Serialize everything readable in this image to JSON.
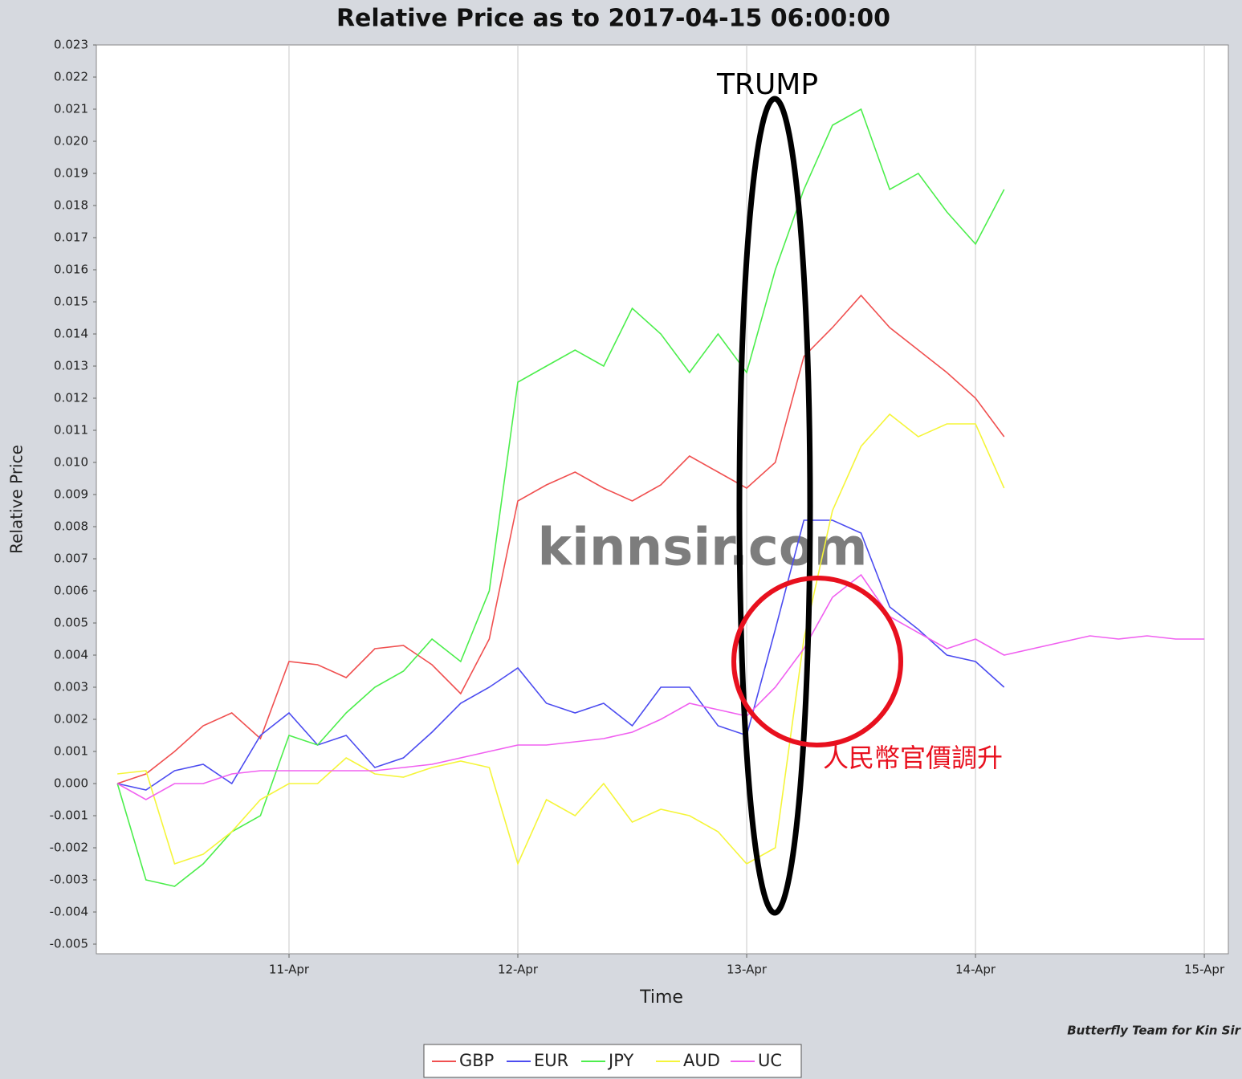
{
  "chart_data": {
    "type": "line",
    "title": "Relative Price as to 2017-04-15 06:00:00",
    "x_label": "Time",
    "y_label": "Relative Price",
    "annotations": [
      "TRUMP",
      "人民幣官價調升",
      "kinnsir.com",
      "Butterfly Team for Kin Sir"
    ],
    "xlim": [
      10.158,
      15.105
    ],
    "ylim": [
      -0.0053,
      0.023
    ],
    "xticks": [
      {
        "value": 11,
        "label": "11-Apr"
      },
      {
        "value": 12,
        "label": "12-Apr"
      },
      {
        "value": 13,
        "label": "13-Apr"
      },
      {
        "value": 14,
        "label": "14-Apr"
      },
      {
        "value": 15,
        "label": "15-Apr"
      }
    ],
    "yticks": [
      {
        "value": -0.005,
        "label": "-0.005"
      },
      {
        "value": -0.004,
        "label": "-0.004"
      },
      {
        "value": -0.003,
        "label": "-0.003"
      },
      {
        "value": -0.002,
        "label": "-0.002"
      },
      {
        "value": -0.001,
        "label": "-0.001"
      },
      {
        "value": 0,
        "label": "0.000"
      },
      {
        "value": 0.001,
        "label": "0.001"
      },
      {
        "value": 0.002,
        "label": "0.002"
      },
      {
        "value": 0.003,
        "label": "0.003"
      },
      {
        "value": 0.004,
        "label": "0.004"
      },
      {
        "value": 0.005,
        "label": "0.005"
      },
      {
        "value": 0.006,
        "label": "0.006"
      },
      {
        "value": 0.007,
        "label": "0.007"
      },
      {
        "value": 0.008,
        "label": "0.008"
      },
      {
        "value": 0.009,
        "label": "0.009"
      },
      {
        "value": 0.01,
        "label": "0.010"
      },
      {
        "value": 0.011,
        "label": "0.011"
      },
      {
        "value": 0.012,
        "label": "0.012"
      },
      {
        "value": 0.013,
        "label": "0.013"
      },
      {
        "value": 0.014,
        "label": "0.014"
      },
      {
        "value": 0.015,
        "label": "0.015"
      },
      {
        "value": 0.016,
        "label": "0.016"
      },
      {
        "value": 0.017,
        "label": "0.017"
      },
      {
        "value": 0.018,
        "label": "0.018"
      },
      {
        "value": 0.019,
        "label": "0.019"
      },
      {
        "value": 0.02,
        "label": "0.020"
      },
      {
        "value": 0.021,
        "label": "0.021"
      },
      {
        "value": 0.022,
        "label": "0.022"
      },
      {
        "value": 0.023,
        "label": "0.023"
      }
    ],
    "grid": true,
    "x": [
      10.25,
      10.375,
      10.5,
      10.625,
      10.75,
      10.875,
      11,
      11.125,
      11.25,
      11.375,
      11.5,
      11.625,
      11.75,
      11.875,
      12,
      12.125,
      12.25,
      12.375,
      12.5,
      12.625,
      12.75,
      12.875,
      13,
      13.125,
      13.25,
      13.375,
      13.5,
      13.625,
      13.75,
      13.875,
      14,
      14.125,
      14.25,
      14.375,
      14.5,
      14.625,
      14.75,
      14.875,
      15
    ],
    "series": [
      {
        "name": "GBP",
        "color": "#f05050",
        "values": [
          0,
          0.0003,
          0.001,
          0.0018,
          0.0022,
          0.0014,
          0.0038,
          0.0037,
          0.0033,
          0.0042,
          0.0043,
          0.0037,
          0.0028,
          0.0045,
          0.0088,
          0.0093,
          0.0097,
          0.0092,
          0.0088,
          0.0093,
          0.0102,
          0.0097,
          0.0092,
          0.01,
          0.0133,
          0.0142,
          0.0152,
          0.0142,
          0.0135,
          0.0128,
          0.012,
          0.0108,
          null,
          null,
          null,
          null,
          null,
          null,
          null
        ]
      },
      {
        "name": "EUR",
        "color": "#4c4cf0",
        "values": [
          0,
          -0.0002,
          0.0004,
          0.0006,
          0,
          0.0015,
          0.0022,
          0.0012,
          0.0015,
          0.0005,
          0.0008,
          0.0016,
          0.0025,
          0.003,
          0.0036,
          0.0025,
          0.0022,
          0.0025,
          0.0018,
          0.003,
          0.003,
          0.0018,
          0.0015,
          0.0048,
          0.0082,
          0.0082,
          0.0078,
          0.0055,
          0.0048,
          0.004,
          0.0038,
          0.003,
          null,
          null,
          null,
          null,
          null,
          null,
          null
        ]
      },
      {
        "name": "JPY",
        "color": "#4cee4c",
        "values": [
          0,
          -0.003,
          -0.0032,
          -0.0025,
          -0.0015,
          -0.001,
          0.0015,
          0.0012,
          0.0022,
          0.003,
          0.0035,
          0.0045,
          0.0038,
          0.006,
          0.0125,
          0.013,
          0.0135,
          0.013,
          0.0148,
          0.014,
          0.0128,
          0.014,
          0.0128,
          0.016,
          0.0185,
          0.0205,
          0.021,
          0.0185,
          0.019,
          0.0178,
          0.0168,
          0.0185,
          null,
          null,
          null,
          null,
          null,
          null,
          null
        ]
      },
      {
        "name": "AUD",
        "color": "#f5f53a",
        "values": [
          0.0003,
          0.0004,
          -0.0025,
          -0.0022,
          -0.0015,
          -0.0005,
          0,
          0,
          0.0008,
          0.0003,
          0.0002,
          0.0005,
          0.0007,
          0.0005,
          -0.0025,
          -0.0005,
          -0.001,
          0,
          -0.0012,
          -0.0008,
          -0.001,
          -0.0015,
          -0.0025,
          -0.002,
          0.0045,
          0.0085,
          0.0105,
          0.0115,
          0.0108,
          0.0112,
          0.0112,
          0.0092,
          null,
          null,
          null,
          null,
          null,
          null,
          null
        ]
      },
      {
        "name": "UC",
        "color": "#f060f0",
        "values": [
          0,
          -0.0005,
          0,
          0,
          0.0003,
          0.0004,
          0.0004,
          0.0004,
          0.0004,
          0.0004,
          0.0005,
          0.0006,
          0.0008,
          0.001,
          0.0012,
          0.0012,
          0.0013,
          0.0014,
          0.0016,
          0.002,
          0.0025,
          0.0023,
          0.0021,
          0.003,
          0.0042,
          0.0058,
          0.0065,
          0.0052,
          0.0047,
          0.0042,
          0.0045,
          0.004,
          0.0042,
          0.0044,
          0.0046,
          0.0045,
          0.0046,
          0.0045,
          0.0045
        ]
      }
    ]
  }
}
